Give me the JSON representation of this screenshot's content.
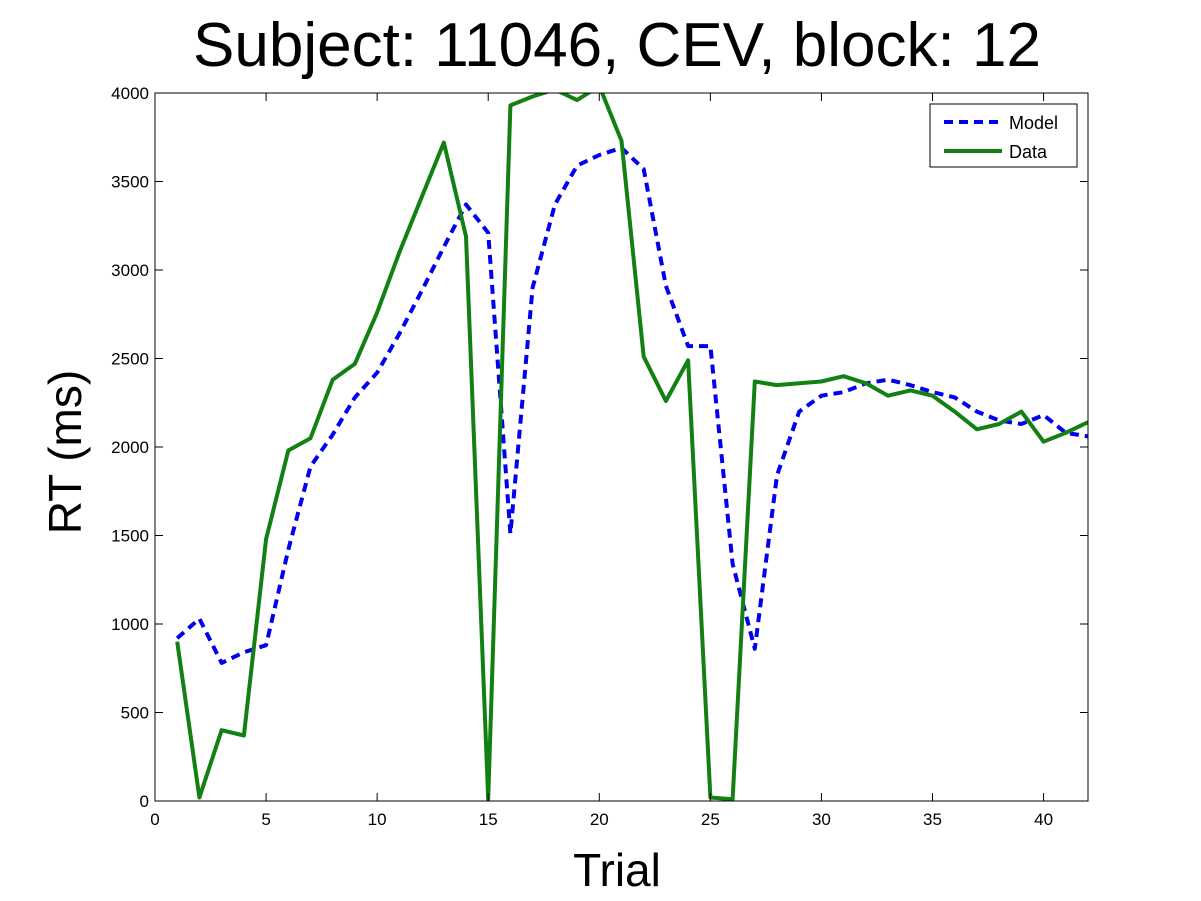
{
  "chart_data": {
    "type": "line",
    "title": "Subject: 11046, CEV, block: 12",
    "xlabel": "Trial",
    "ylabel": "RT (ms)",
    "xlim": [
      0,
      42
    ],
    "ylim": [
      0,
      4000
    ],
    "xticks": [
      0,
      5,
      10,
      15,
      20,
      25,
      30,
      35,
      40
    ],
    "yticks": [
      0,
      500,
      1000,
      1500,
      2000,
      2500,
      3000,
      3500,
      4000
    ],
    "grid": false,
    "legend_position": "top-right",
    "series": [
      {
        "name": "Model",
        "color": "#0000ee",
        "style": "dashed",
        "x": [
          1,
          2,
          3,
          4,
          5,
          6,
          7,
          8,
          9,
          10,
          11,
          12,
          13,
          14,
          15,
          16,
          17,
          18,
          19,
          20,
          21,
          22,
          23,
          24,
          25,
          26,
          27,
          28,
          29,
          30,
          31,
          32,
          33,
          34,
          35,
          36,
          37,
          38,
          39,
          40,
          41,
          42
        ],
        "y": [
          920,
          1030,
          780,
          840,
          880,
          1420,
          1890,
          2070,
          2280,
          2420,
          2640,
          2880,
          3130,
          3370,
          3210,
          1510,
          2900,
          3370,
          3590,
          3650,
          3690,
          3570,
          2910,
          2570,
          2570,
          1340,
          860,
          1840,
          2200,
          2290,
          2310,
          2360,
          2380,
          2350,
          2310,
          2280,
          2200,
          2150,
          2130,
          2180,
          2080,
          2060
        ]
      },
      {
        "name": "Data",
        "color": "#128012",
        "style": "solid",
        "x": [
          1,
          2,
          3,
          4,
          5,
          6,
          7,
          8,
          9,
          10,
          11,
          12,
          13,
          14,
          15,
          16,
          17,
          18,
          19,
          20,
          21,
          22,
          23,
          24,
          25,
          26,
          27,
          28,
          29,
          30,
          31,
          32,
          33,
          34,
          35,
          36,
          37,
          38,
          39,
          40,
          41,
          42
        ],
        "y": [
          900,
          20,
          400,
          370,
          1480,
          1980,
          2050,
          2380,
          2470,
          2760,
          3100,
          3410,
          3720,
          3190,
          10,
          3930,
          3980,
          4020,
          3960,
          4040,
          3730,
          2510,
          2260,
          2490,
          20,
          10,
          2370,
          2350,
          2360,
          2370,
          2400,
          2360,
          2290,
          2320,
          2290,
          2200,
          2100,
          2130,
          2200,
          2030,
          2080,
          2140
        ]
      }
    ]
  }
}
